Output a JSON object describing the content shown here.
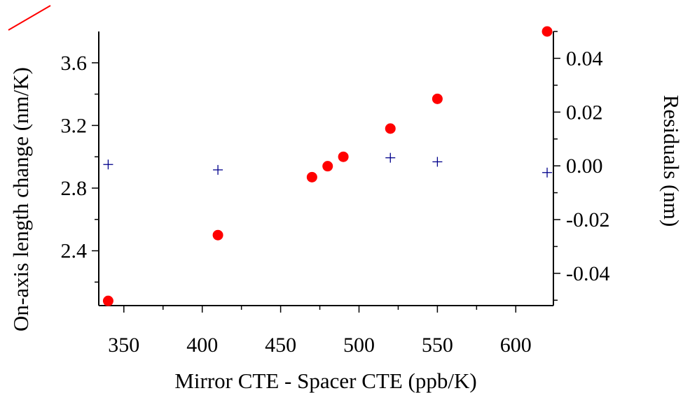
{
  "chart_data": {
    "type": "scatter",
    "xlabel": "Mirror CTE - Spacer CTE  (ppb/K)",
    "ylabel_left": "On-axis length change  (nm/K)",
    "ylabel_right": "Residuals (nm)",
    "xlim": [
      334,
      624
    ],
    "ylim_left": [
      2.05,
      3.8
    ],
    "ylim_right": [
      -0.052,
      0.05
    ],
    "x_ticks": [
      350,
      400,
      450,
      500,
      550,
      600
    ],
    "x_tick_labels": [
      "350",
      "400",
      "450",
      "500",
      "550",
      "600"
    ],
    "y_left_ticks": [
      2.4,
      2.8,
      3.2,
      3.6
    ],
    "y_left_tick_labels": [
      "2.4",
      "2.8",
      "3.2",
      "3.6"
    ],
    "y_right_ticks": [
      -0.04,
      -0.02,
      0.0,
      0.02,
      0.04
    ],
    "y_right_tick_labels": [
      "-0.04",
      "-0.02",
      "0.00",
      "0.02",
      "0.04"
    ],
    "grid": false,
    "series": [
      {
        "axis": "left",
        "marker": "circle",
        "color": "#ff0000",
        "x": [
          340,
          410,
          470,
          480,
          490,
          520,
          550,
          620
        ],
        "y": [
          2.08,
          2.5,
          2.87,
          2.94,
          3.0,
          3.18,
          3.37,
          3.8
        ]
      },
      {
        "axis": "right",
        "marker": "plus",
        "color": "#00008b",
        "x": [
          340,
          410,
          520,
          550,
          620
        ],
        "y": [
          0.0005,
          -0.0015,
          0.003,
          0.0015,
          -0.0025
        ]
      }
    ],
    "legend_swatch_color": "#ff0000"
  }
}
